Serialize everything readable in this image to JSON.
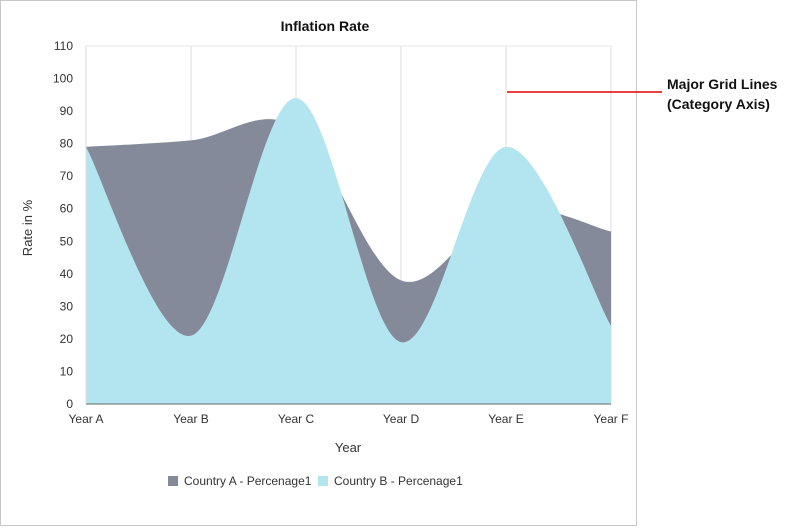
{
  "chart_data": {
    "type": "area",
    "title": "Inflation Rate",
    "xlabel": "Year",
    "ylabel": "Rate in %",
    "categories": [
      "Year A",
      "Year B",
      "Year C",
      "Year D",
      "Year E",
      "Year F"
    ],
    "ylim": [
      0,
      110
    ],
    "yticks": [
      0,
      10,
      20,
      30,
      40,
      50,
      60,
      70,
      80,
      90,
      100,
      110
    ],
    "series": [
      {
        "name": "Country A - Percenage1",
        "values": [
          79,
          81,
          85,
          38,
          60,
          53
        ],
        "color": "#858a9a"
      },
      {
        "name": "Country B - Percenage1",
        "values": [
          79,
          21,
          94,
          19,
          79,
          24
        ],
        "color": "#b3e5f0"
      }
    ],
    "grid": {
      "category_axis_major": true,
      "value_axis_major": false
    },
    "legend": "bottom",
    "curve": "spline"
  },
  "annotation": {
    "line1": "Major Grid Lines",
    "line2": "(Category Axis)",
    "color": "#e00000"
  }
}
